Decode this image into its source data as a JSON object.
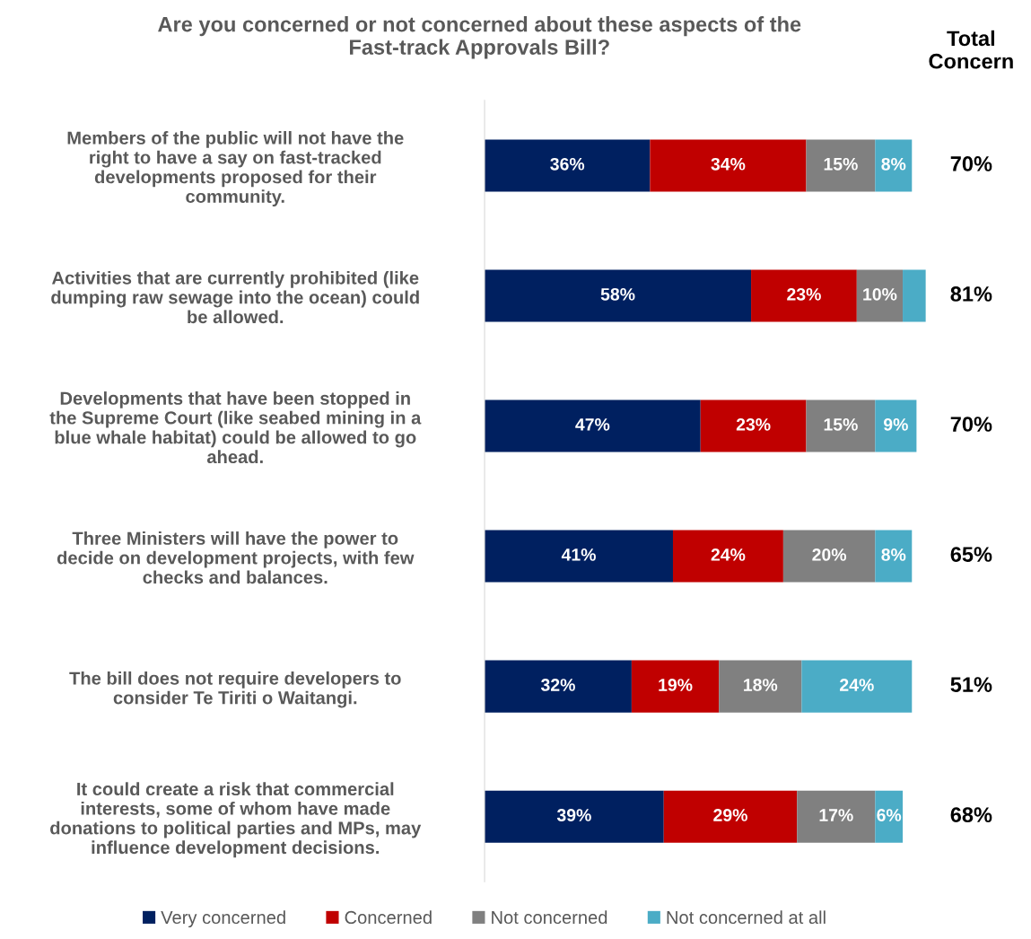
{
  "chart_data": {
    "type": "bar",
    "orientation": "horizontal",
    "stacked": true,
    "title": "Are you concerned or not concerned about these aspects of the\nFast-track Approvals Bill?",
    "categories": [
      "Members of the public will not have the\nright to have a say on fast-tracked\ndevelopments proposed for their\ncommunity.",
      "Activities that are currently prohibited (like\ndumping raw sewage into the ocean) could\nbe allowed.",
      "Developments that have been stopped in\nthe Supreme Court (like seabed mining in a\nblue whale habitat) could be allowed to go\nahead.",
      "Three Ministers will have the power to\ndecide on development projects, with few\nchecks and balances.",
      "The bill does not require developers to\nconsider Te Tiriti o Waitangi.",
      "It could create a risk that commercial\ninterests, some of whom have made\ndonations to political parties and MPs, may\ninfluence development decisions."
    ],
    "series": [
      {
        "name": "Very concerned",
        "color": "#002060",
        "values": [
          36,
          58,
          47,
          41,
          32,
          39
        ],
        "value_labels": [
          "36%",
          "58%",
          "47%",
          "41%",
          "32%",
          "39%"
        ]
      },
      {
        "name": "Concerned",
        "color": "#c00000",
        "values": [
          34,
          23,
          23,
          24,
          19,
          29
        ],
        "value_labels": [
          "34%",
          "23%",
          "23%",
          "24%",
          "19%",
          "29%"
        ]
      },
      {
        "name": "Not concerned",
        "color": "#808080",
        "values": [
          15,
          10,
          15,
          20,
          18,
          17
        ],
        "value_labels": [
          "15%",
          "10%",
          "15%",
          "20%",
          "18%",
          "17%"
        ]
      },
      {
        "name": "Not concerned at all",
        "color": "#4bacc6",
        "values": [
          8,
          5,
          9,
          8,
          24,
          6
        ],
        "value_labels": [
          "8%",
          null,
          "9%",
          "8%",
          "24%",
          "6%"
        ]
      }
    ],
    "annotations": [
      "Total\nConcern",
      "70%",
      "81%",
      "70%",
      "65%",
      "51%",
      "68%"
    ],
    "legend": "bottom",
    "grid": false
  }
}
